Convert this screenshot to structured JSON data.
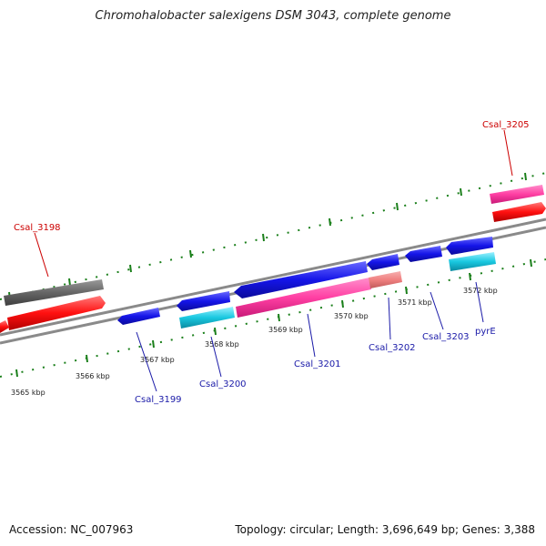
{
  "title": "Chromohalobacter salexigens DSM 3043, complete genome",
  "footer": {
    "accession": "Accession: NC_007963",
    "summary": "Topology: circular; Length: 3,696,649 bp; Genes: 3,388"
  },
  "colors": {
    "backbone": "#8a8a8a",
    "ticks": "#1a7f1a",
    "forward_label": "#cc0000",
    "reverse_label": "#1a1aa8",
    "gene_red": "#ff1010",
    "gene_gray": "#6a6a6a",
    "gene_pink": "#ff3fa3",
    "gene_salmon": "#f08080",
    "gene_blue": "#1515e8",
    "gene_cyan": "#19c8e0"
  },
  "scale_labels": [
    "3565 kbp",
    "3566 kbp",
    "3567 kbp",
    "3568 kbp",
    "3569 kbp",
    "3570 kbp",
    "3571 kbp",
    "3572 kbp"
  ],
  "gene_labels": {
    "top": [
      "Csal_3198",
      "Csal_3205"
    ],
    "bottom": [
      "Csal_3199",
      "Csal_3200",
      "Csal_3201",
      "Csal_3202",
      "Csal_3203",
      "pyrE"
    ]
  }
}
